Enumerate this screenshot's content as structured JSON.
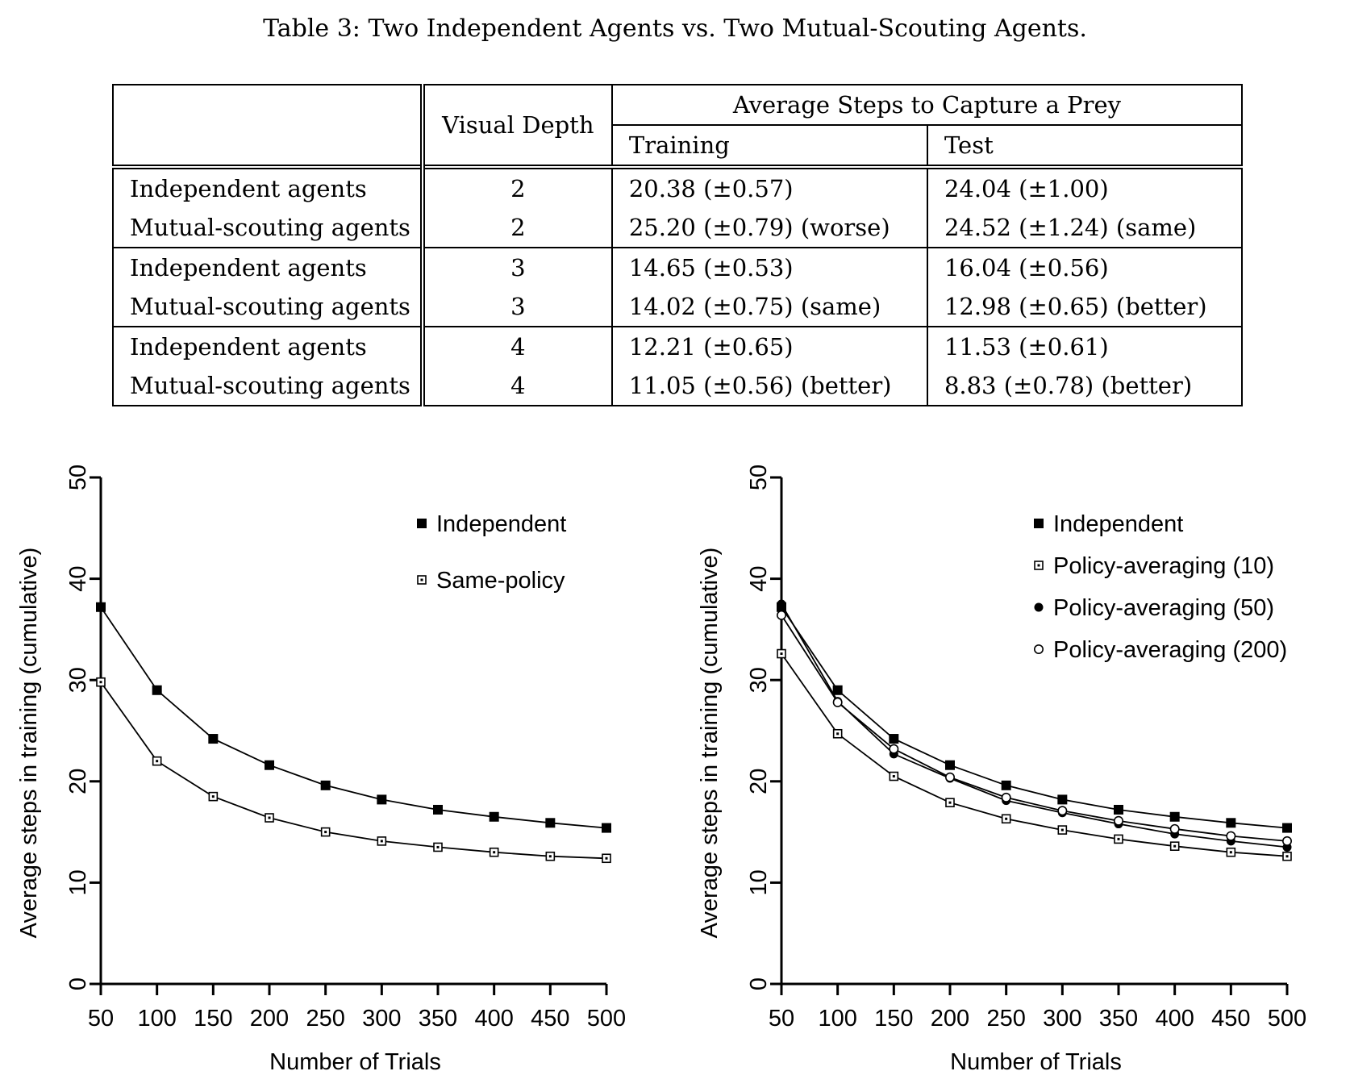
{
  "caption": "Table 3: Two Independent Agents vs. Two Mutual-Scouting Agents.",
  "table": {
    "header": {
      "visual_depth": "Visual Depth",
      "avg_steps": "Average Steps to Capture a Prey",
      "training": "Training",
      "test": "Test"
    },
    "rows": [
      {
        "agent": "Independent agents",
        "depth": "2",
        "training": "20.38 (±0.57)",
        "test": "24.04 (±1.00)"
      },
      {
        "agent": "Mutual-scouting agents",
        "depth": "2",
        "training": "25.20 (±0.79) (worse)",
        "test": "24.52 (±1.24) (same)"
      },
      {
        "agent": "Independent agents",
        "depth": "3",
        "training": "14.65 (±0.53)",
        "test": "16.04 (±0.56)"
      },
      {
        "agent": "Mutual-scouting agents",
        "depth": "3",
        "training": "14.02 (±0.75) (same)",
        "test": "12.98 (±0.65) (better)"
      },
      {
        "agent": "Independent agents",
        "depth": "4",
        "training": "12.21 (±0.65)",
        "test": "11.53 (±0.61)"
      },
      {
        "agent": "Mutual-scouting agents",
        "depth": "4",
        "training": "11.05 (±0.56) (better)",
        "test": "8.83 (±0.78) (better)"
      }
    ]
  },
  "chart_data": [
    {
      "type": "line",
      "xlabel": "Number of Trials",
      "ylabel": "Average steps in training (cumulative)",
      "x": [
        50,
        100,
        150,
        200,
        250,
        300,
        350,
        400,
        450,
        500
      ],
      "ylim": [
        0,
        50
      ],
      "yticks": [
        0,
        10,
        20,
        30,
        40,
        50
      ],
      "legend_position": "top-right",
      "series": [
        {
          "name": "Independent",
          "marker": "filled-square",
          "values": [
            37.2,
            29.0,
            24.2,
            21.6,
            19.6,
            18.2,
            17.2,
            16.5,
            15.9,
            15.4
          ]
        },
        {
          "name": "Same-policy",
          "marker": "open-square",
          "values": [
            29.8,
            22.0,
            18.5,
            16.4,
            15.0,
            14.1,
            13.5,
            13.0,
            12.6,
            12.4
          ]
        }
      ]
    },
    {
      "type": "line",
      "xlabel": "Number of Trials",
      "ylabel": "Average steps in training (cumulative)",
      "x": [
        50,
        100,
        150,
        200,
        250,
        300,
        350,
        400,
        450,
        500
      ],
      "ylim": [
        0,
        50
      ],
      "yticks": [
        0,
        10,
        20,
        30,
        40,
        50
      ],
      "legend_position": "top-right",
      "series": [
        {
          "name": "Independent",
          "marker": "filled-square",
          "values": [
            37.2,
            29.0,
            24.2,
            21.6,
            19.6,
            18.2,
            17.2,
            16.5,
            15.9,
            15.4
          ]
        },
        {
          "name": "Policy-averaging (10)",
          "marker": "open-square",
          "values": [
            32.6,
            24.7,
            20.5,
            17.9,
            16.3,
            15.2,
            14.3,
            13.6,
            13.0,
            12.6
          ]
        },
        {
          "name": "Policy-averaging (50)",
          "marker": "filled-circle",
          "values": [
            37.5,
            27.9,
            22.7,
            20.3,
            18.1,
            16.9,
            15.8,
            14.8,
            14.1,
            13.5
          ]
        },
        {
          "name": "Policy-averaging (200)",
          "marker": "open-circle",
          "values": [
            36.4,
            27.8,
            23.2,
            20.4,
            18.4,
            17.1,
            16.1,
            15.3,
            14.6,
            14.1
          ]
        }
      ]
    }
  ]
}
